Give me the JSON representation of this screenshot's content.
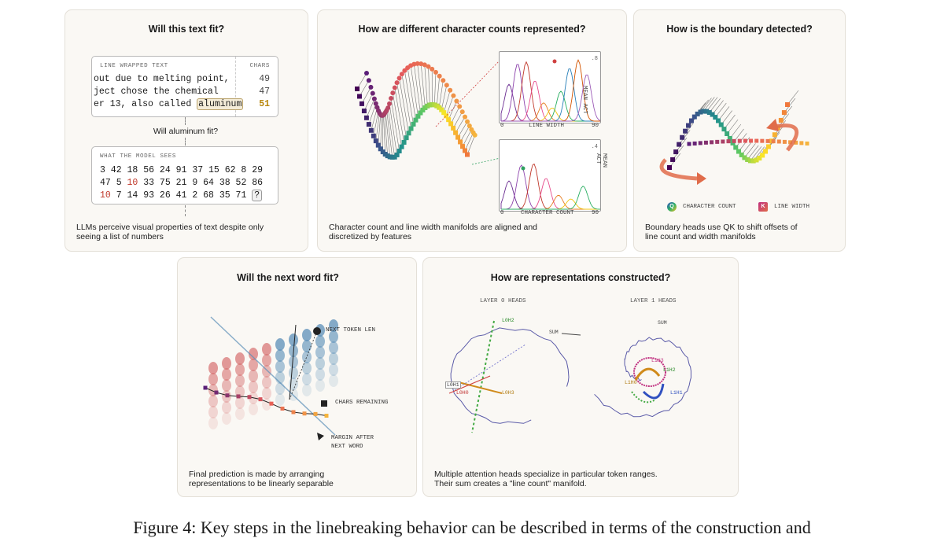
{
  "panel1": {
    "title": "Will this text fit?",
    "wrapped_header": "LINE WRAPPED TEXT",
    "chars_header": "CHARS",
    "lines": [
      {
        "text": "out due to melting point,",
        "chars": "49"
      },
      {
        "text": "ject chose the chemical",
        "chars": "47"
      },
      {
        "text": "er 13, also called",
        "chars": "51",
        "word": "aluminum"
      }
    ],
    "question": "Will aluminum fit?",
    "sees_header": "WHAT THE MODEL SEES",
    "tokens_row1": "3 42 18 56 24 91 37 15 62 8 29",
    "tokens_row2a": "47 5 ",
    "tokens_row2_red": "10",
    "tokens_row2b": " 33 75 21 9 64 38 52 86",
    "tokens_row3_red": "10",
    "tokens_row3b": " 7 14 93 26 41 2 68 35 71 ",
    "tokens_q": "?",
    "caption": [
      "LLMs perceive visual properties of text despite only",
      "seeing a list of numbers"
    ]
  },
  "panel2": {
    "title": "How are different character counts represented?",
    "plot1": {
      "xlabel": "LINE WIDTH",
      "xmin": "0",
      "xmax": "90",
      "ymax": ".8",
      "ylabel": "MEAN ACT"
    },
    "plot2": {
      "xlabel": "CHARACTER COUNT",
      "xmin": "0",
      "xmax": "90",
      "ymax": ".4",
      "ylabel": "MEAN ACT"
    },
    "caption": [
      "Character count and line width manifolds are aligned and",
      "discretized by features"
    ]
  },
  "panel3": {
    "title": "How is the boundary detected?",
    "legend_c": "CHARACTER COUNT",
    "legend_c_key": "Q",
    "legend_k": "LINE WIDTH",
    "legend_k_key": "K",
    "caption": [
      "Boundary heads use QK to shift offsets of",
      "line count and width manifolds"
    ]
  },
  "panel4": {
    "title": "Will the next word fit?",
    "label_next": "NEXT TOKEN LEN",
    "label_chars": "CHARS REMAINING",
    "label_margin": [
      "MARGIN AFTER",
      "NEXT WORD"
    ],
    "caption": [
      "Final prediction is made by arranging",
      "representations to be linearly separable"
    ]
  },
  "panel5": {
    "title": "How are representations constructed?",
    "layer0": "LAYER 0 HEADS",
    "layer1": "LAYER 1 HEADS",
    "l0": [
      "L0H2",
      "L0H1",
      "L0H0",
      "L0H3",
      "SUM"
    ],
    "l1": [
      "SUM",
      "L1H3",
      "L1H2",
      "L1H0",
      "L1H1"
    ],
    "caption": [
      "Multiple attention heads specialize in particular token ranges.",
      "Their sum creates a \"line count\" manifold."
    ]
  },
  "figure_caption": "Figure 4: Key steps in the linebreaking behavior can be described in terms of the construction and",
  "colors": {
    "panel_bg": "#faf8f4",
    "highlight": "#c0392b",
    "accent_gold": "#b8860b"
  }
}
